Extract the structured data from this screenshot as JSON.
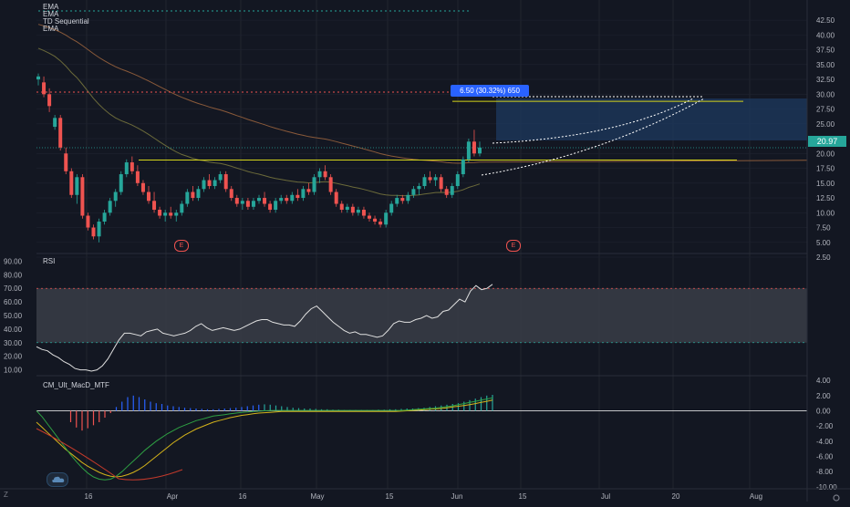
{
  "indicators": {
    "main": [
      "EMA",
      "EMA",
      "TD Sequential",
      "EMA"
    ],
    "rsi": "RSI",
    "macd": "CM_Ult_MacD_MTF"
  },
  "price_box": {
    "label": "6.50 (30.32%) 650",
    "last_price": "20.97"
  },
  "earnings_marker": "E",
  "colors": {
    "background": "#131722",
    "up": "#26a69a",
    "down": "#ef5350",
    "accent": "#2962ff",
    "last_price": "#26a69a",
    "yellow": "#d4d41a",
    "rsi_band": "#3a3d46"
  },
  "chart_data": [
    {
      "type": "candlestick",
      "title": "",
      "x_ticks": [
        "16",
        "Apr",
        "16",
        "May",
        "15",
        "Jun",
        "15",
        "Jul",
        "20",
        "Aug"
      ],
      "y_ticks": [
        "42.50",
        "40.00",
        "37.50",
        "35.00",
        "32.50",
        "30.00",
        "27.50",
        "25.00",
        "22.50",
        "20.00",
        "17.50",
        "15.00",
        "12.50",
        "10.00",
        "7.50",
        "5.00",
        "2.50"
      ],
      "ylim": [
        2.5,
        43.75
      ],
      "last_price": 20.97,
      "horizontal_levels": [
        28.8,
        18.9
      ],
      "candles": [
        [
          32.5,
          33.5,
          31.5,
          33.0
        ],
        [
          32.0,
          33.0,
          29.5,
          30.0
        ],
        [
          30.0,
          31.0,
          27.0,
          28.0
        ],
        [
          24.5,
          26.5,
          24.0,
          26.0
        ],
        [
          26.0,
          26.5,
          20.5,
          21.0
        ],
        [
          20.0,
          21.0,
          16.5,
          17.0
        ],
        [
          17.0,
          17.5,
          12.5,
          13.0
        ],
        [
          13.0,
          16.5,
          11.5,
          16.0
        ],
        [
          16.0,
          16.5,
          9.0,
          9.5
        ],
        [
          9.5,
          10.0,
          7.0,
          7.5
        ],
        [
          7.5,
          8.0,
          5.5,
          6.0
        ],
        [
          6.0,
          9.0,
          5.0,
          8.5
        ],
        [
          8.5,
          10.5,
          8.0,
          10.0
        ],
        [
          10.0,
          12.5,
          9.5,
          12.0
        ],
        [
          12.0,
          14.0,
          11.0,
          13.5
        ],
        [
          13.5,
          17.0,
          13.0,
          16.5
        ],
        [
          16.5,
          19.0,
          16.0,
          18.5
        ],
        [
          18.5,
          19.5,
          16.5,
          17.0
        ],
        [
          17.0,
          18.0,
          14.5,
          15.0
        ],
        [
          15.0,
          15.5,
          13.0,
          13.5
        ],
        [
          13.5,
          14.5,
          11.5,
          12.0
        ],
        [
          12.0,
          13.5,
          10.0,
          10.5
        ],
        [
          10.5,
          11.0,
          9.0,
          9.5
        ],
        [
          9.5,
          10.5,
          8.5,
          10.0
        ],
        [
          10.0,
          11.0,
          9.0,
          9.5
        ],
        [
          9.5,
          10.5,
          8.5,
          10.0
        ],
        [
          10.0,
          12.0,
          9.5,
          11.5
        ],
        [
          11.5,
          14.0,
          11.0,
          13.5
        ],
        [
          13.5,
          14.5,
          12.0,
          12.5
        ],
        [
          12.5,
          14.5,
          12.0,
          14.0
        ],
        [
          14.0,
          16.0,
          13.5,
          15.5
        ],
        [
          15.5,
          16.5,
          14.0,
          14.5
        ],
        [
          14.5,
          16.0,
          14.0,
          15.5
        ],
        [
          15.5,
          17.0,
          15.0,
          16.5
        ],
        [
          16.5,
          17.0,
          13.5,
          14.0
        ],
        [
          14.0,
          14.5,
          12.0,
          12.5
        ],
        [
          12.5,
          13.0,
          11.0,
          11.5
        ],
        [
          11.5,
          12.5,
          10.5,
          12.0
        ],
        [
          12.0,
          12.5,
          10.5,
          11.0
        ],
        [
          11.0,
          12.5,
          10.5,
          12.0
        ],
        [
          12.0,
          13.0,
          11.5,
          12.5
        ],
        [
          12.5,
          13.5,
          11.0,
          11.5
        ],
        [
          11.5,
          12.0,
          10.0,
          10.5
        ],
        [
          10.5,
          12.5,
          10.0,
          12.0
        ],
        [
          12.0,
          13.0,
          11.5,
          12.5
        ],
        [
          12.5,
          13.0,
          11.5,
          12.0
        ],
        [
          12.0,
          13.5,
          11.5,
          13.0
        ],
        [
          13.0,
          14.0,
          12.0,
          12.5
        ],
        [
          12.5,
          14.5,
          12.0,
          14.0
        ],
        [
          14.0,
          15.0,
          13.0,
          13.5
        ],
        [
          13.5,
          16.5,
          13.0,
          16.0
        ],
        [
          16.0,
          17.5,
          15.0,
          17.0
        ],
        [
          17.0,
          18.0,
          15.5,
          16.0
        ],
        [
          16.0,
          16.5,
          13.0,
          13.5
        ],
        [
          13.5,
          14.0,
          11.0,
          11.5
        ],
        [
          11.5,
          12.0,
          10.0,
          10.5
        ],
        [
          10.5,
          11.5,
          10.0,
          11.0
        ],
        [
          11.0,
          11.5,
          9.5,
          10.0
        ],
        [
          10.0,
          11.0,
          9.5,
          10.5
        ],
        [
          10.5,
          11.0,
          9.0,
          9.5
        ],
        [
          9.5,
          10.0,
          8.5,
          9.0
        ],
        [
          9.0,
          9.5,
          8.0,
          8.5
        ],
        [
          8.5,
          9.0,
          7.5,
          8.0
        ],
        [
          8.0,
          10.5,
          7.5,
          10.0
        ],
        [
          10.0,
          12.0,
          9.5,
          11.5
        ],
        [
          11.5,
          13.0,
          11.0,
          12.5
        ],
        [
          12.5,
          13.0,
          11.5,
          12.0
        ],
        [
          12.0,
          13.5,
          11.5,
          13.0
        ],
        [
          13.0,
          14.5,
          12.5,
          14.0
        ],
        [
          14.0,
          15.0,
          13.0,
          14.5
        ],
        [
          14.5,
          16.5,
          14.0,
          16.0
        ],
        [
          16.0,
          17.0,
          15.0,
          15.5
        ],
        [
          15.5,
          16.5,
          14.5,
          16.0
        ],
        [
          16.0,
          16.5,
          13.5,
          14.0
        ],
        [
          14.0,
          14.5,
          12.5,
          13.0
        ],
        [
          13.0,
          15.0,
          12.5,
          14.5
        ],
        [
          14.5,
          17.0,
          14.0,
          16.5
        ],
        [
          16.5,
          19.5,
          16.0,
          19.0
        ],
        [
          19.0,
          22.5,
          18.5,
          22.0
        ],
        [
          22.0,
          24.0,
          19.5,
          20.0
        ],
        [
          20.0,
          22.0,
          19.5,
          21.0
        ]
      ]
    },
    {
      "type": "line",
      "title": "RSI",
      "y_ticks": [
        "90.00",
        "80.00",
        "70.00",
        "60.00",
        "50.00",
        "40.00",
        "30.00",
        "20.00",
        "10.00"
      ],
      "ylim": [
        5,
        95
      ],
      "band": [
        30,
        70
      ],
      "values": [
        27,
        25,
        24,
        21,
        19,
        16,
        14,
        11,
        10,
        10,
        9,
        10,
        13,
        18,
        25,
        32,
        37,
        37,
        36,
        35,
        38,
        39,
        40,
        37,
        36,
        35,
        36,
        37,
        39,
        42,
        44,
        41,
        39,
        40,
        41,
        40,
        39,
        40,
        42,
        44,
        46,
        47,
        47,
        45,
        44,
        43,
        43,
        42,
        46,
        51,
        55,
        57,
        53,
        49,
        45,
        42,
        39,
        37,
        38,
        36,
        36,
        35,
        34,
        35,
        39,
        44,
        46,
        45,
        45,
        47,
        48,
        50,
        48,
        49,
        53,
        54,
        58,
        62,
        60,
        68,
        72,
        69,
        70,
        73
      ]
    },
    {
      "type": "bar",
      "title": "CM_Ult_MacD_MTF",
      "y_ticks": [
        "4.00",
        "2.00",
        "0.00",
        "-2.00",
        "-4.00",
        "-6.00",
        "-8.00",
        "-10.00"
      ],
      "ylim": [
        -10.5,
        4.5
      ],
      "histogram": [
        0,
        0,
        0,
        0,
        0,
        0,
        -1.5,
        -2.2,
        -2.6,
        -2.3,
        -1.9,
        -1.5,
        -0.9,
        -0.3,
        0.5,
        1.2,
        1.8,
        2.0,
        1.8,
        1.5,
        1.2,
        1.0,
        0.9,
        0.7,
        0.6,
        0.5,
        0.4,
        0.35,
        0.3,
        0.25,
        0.2,
        0.2,
        0.25,
        0.3,
        0.35,
        0.4,
        0.5,
        0.6,
        0.7,
        0.8,
        0.85,
        0.8,
        0.7,
        0.6,
        0.5,
        0.4,
        0.35,
        0.3,
        0.3,
        0.25,
        0.2,
        0.2,
        0.15,
        0.15,
        0.1,
        0.1,
        0.1,
        0.1,
        0.1,
        0.1,
        0.15,
        0.15,
        0.2,
        0.2,
        0.25,
        0.3,
        0.3,
        0.35,
        0.4,
        0.5,
        0.6,
        0.7,
        0.8,
        0.9,
        1.0,
        1.2,
        1.4,
        1.6,
        1.8,
        2.0,
        2.1
      ],
      "macd": [
        0,
        -0.8,
        -1.8,
        -2.8,
        -3.8,
        -4.8,
        -5.8,
        -6.7,
        -7.5,
        -8.2,
        -8.7,
        -9.0,
        -9.1,
        -9.0,
        -8.6,
        -8.0,
        -7.3,
        -6.6,
        -5.9,
        -5.2,
        -4.6,
        -4.0,
        -3.5,
        -3.0,
        -2.6,
        -2.2,
        -1.9,
        -1.6,
        -1.3,
        -1.1,
        -0.9,
        -0.7,
        -0.6,
        -0.5,
        -0.4,
        -0.3,
        -0.2,
        -0.15,
        -0.1,
        -0.05,
        0,
        0.02,
        0.05,
        0.05,
        0.05,
        0.05,
        0.05,
        0.05,
        0.05,
        0.05,
        0.05,
        0.05,
        0.05,
        0.05,
        0.05,
        0.05,
        0.05,
        0.05,
        0.05,
        0.05,
        0.05,
        0.05,
        0.05,
        0.05,
        0.05,
        0.1,
        0.15,
        0.2,
        0.25,
        0.3,
        0.35,
        0.45,
        0.55,
        0.65,
        0.8,
        0.95,
        1.1,
        1.25,
        1.4,
        1.55,
        1.7
      ],
      "signal": [
        -1.5,
        -2.2,
        -2.9,
        -3.6,
        -4.3,
        -5.0,
        -5.6,
        -6.2,
        -6.8,
        -7.3,
        -7.7,
        -8.1,
        -8.4,
        -8.6,
        -8.7,
        -8.6,
        -8.4,
        -8.1,
        -7.7,
        -7.2,
        -6.6,
        -6.0,
        -5.4,
        -4.8,
        -4.2,
        -3.7,
        -3.2,
        -2.8,
        -2.4,
        -2.1,
        -1.8,
        -1.5,
        -1.3,
        -1.1,
        -0.9,
        -0.75,
        -0.6,
        -0.5,
        -0.4,
        -0.3,
        -0.25,
        -0.2,
        -0.15,
        -0.1,
        -0.1,
        -0.1,
        -0.1,
        -0.1,
        -0.1,
        -0.1,
        -0.1,
        -0.1,
        -0.1,
        -0.1,
        -0.1,
        -0.1,
        -0.1,
        -0.1,
        -0.1,
        -0.1,
        -0.1,
        -0.1,
        -0.1,
        -0.1,
        -0.05,
        0,
        0.05,
        0.1,
        0.15,
        0.2,
        0.25,
        0.3,
        0.4,
        0.5,
        0.6,
        0.7,
        0.8,
        0.95,
        1.1,
        1.25,
        1.4
      ]
    }
  ]
}
